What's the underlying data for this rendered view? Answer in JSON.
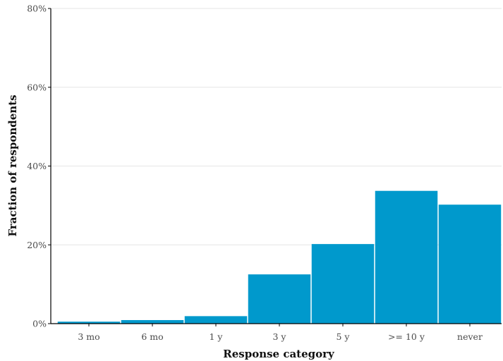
{
  "chart_data": {
    "type": "bar",
    "title": "",
    "xlabel": "Response category",
    "ylabel": "Fraction of respondents",
    "categories": [
      "3 mo",
      "6 mo",
      "1 y",
      "3 y",
      "5 y",
      ">= 10 y",
      "never"
    ],
    "values": [
      0.005,
      0.009,
      0.019,
      0.125,
      0.202,
      0.337,
      0.302
    ],
    "ylim": [
      0,
      0.8
    ],
    "yticks": [
      0,
      0.2,
      0.4,
      0.6,
      0.8
    ],
    "ytick_labels": [
      "0%",
      "20%",
      "40%",
      "60%",
      "80%"
    ],
    "grid": "horizontal",
    "legend": "none",
    "colors": {
      "bar": "#0099cc",
      "grid": "#e6e6e6",
      "axis": "#000000"
    }
  }
}
